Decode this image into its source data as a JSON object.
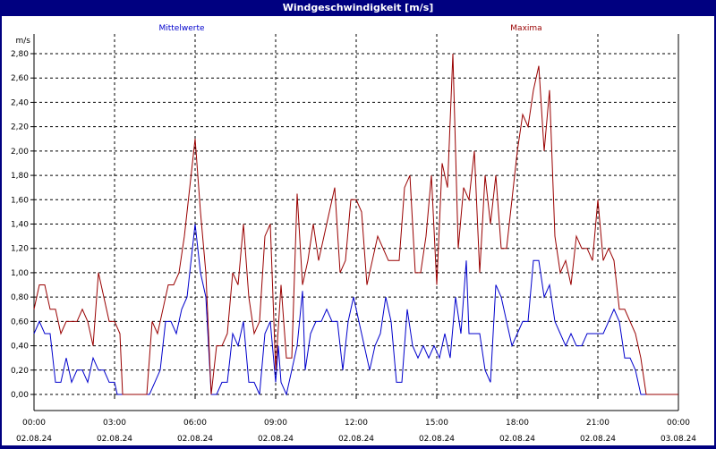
{
  "window": {
    "title": "Windgeschwindigkeit [m/s]"
  },
  "chart_data": {
    "type": "line",
    "title": "Windgeschwindigkeit [m/s]",
    "ylabel": "m/s",
    "xlabel": "",
    "ylim": [
      0,
      2.8
    ],
    "xlim": [
      0,
      24
    ],
    "grid": true,
    "legend": "top",
    "y_ticks": [
      {
        "value": 0.0,
        "label": "0,00"
      },
      {
        "value": 0.2,
        "label": "0,20"
      },
      {
        "value": 0.4,
        "label": "0,40"
      },
      {
        "value": 0.6,
        "label": "0,60"
      },
      {
        "value": 0.8,
        "label": "0,80"
      },
      {
        "value": 1.0,
        "label": "1,00"
      },
      {
        "value": 1.2,
        "label": "1,20"
      },
      {
        "value": 1.4,
        "label": "1,40"
      },
      {
        "value": 1.6,
        "label": "1,60"
      },
      {
        "value": 1.8,
        "label": "1,80"
      },
      {
        "value": 2.0,
        "label": "2,00"
      },
      {
        "value": 2.2,
        "label": "2,20"
      },
      {
        "value": 2.4,
        "label": "2,40"
      },
      {
        "value": 2.6,
        "label": "2,60"
      },
      {
        "value": 2.8,
        "label": "2,80"
      }
    ],
    "x_ticks": [
      {
        "value": 0,
        "time": "00:00",
        "date": "02.08.24"
      },
      {
        "value": 3,
        "time": "03:00",
        "date": "02.08.24"
      },
      {
        "value": 6,
        "time": "06:00",
        "date": "02.08.24"
      },
      {
        "value": 9,
        "time": "09:00",
        "date": "02.08.24"
      },
      {
        "value": 12,
        "time": "12:00",
        "date": "02.08.24"
      },
      {
        "value": 15,
        "time": "15:00",
        "date": "02.08.24"
      },
      {
        "value": 18,
        "time": "18:00",
        "date": "02.08.24"
      },
      {
        "value": 21,
        "time": "21:00",
        "date": "02.08.24"
      },
      {
        "value": 24,
        "time": "00:00",
        "date": "03.08.24"
      }
    ],
    "series": [
      {
        "name": "Mittelwerte",
        "color": "#0000cc",
        "points": [
          [
            0.0,
            0.5
          ],
          [
            0.2,
            0.6
          ],
          [
            0.4,
            0.5
          ],
          [
            0.6,
            0.5
          ],
          [
            0.8,
            0.1
          ],
          [
            1.0,
            0.1
          ],
          [
            1.2,
            0.3
          ],
          [
            1.4,
            0.1
          ],
          [
            1.6,
            0.2
          ],
          [
            1.8,
            0.2
          ],
          [
            2.0,
            0.1
          ],
          [
            2.2,
            0.3
          ],
          [
            2.4,
            0.2
          ],
          [
            2.6,
            0.2
          ],
          [
            2.8,
            0.1
          ],
          [
            3.0,
            0.1
          ],
          [
            3.1,
            0.0
          ],
          [
            4.3,
            0.0
          ],
          [
            4.5,
            0.1
          ],
          [
            4.7,
            0.2
          ],
          [
            4.9,
            0.6
          ],
          [
            5.1,
            0.6
          ],
          [
            5.3,
            0.5
          ],
          [
            5.5,
            0.7
          ],
          [
            5.7,
            0.8
          ],
          [
            5.9,
            1.2
          ],
          [
            6.0,
            1.4
          ],
          [
            6.2,
            1.0
          ],
          [
            6.4,
            0.8
          ],
          [
            6.6,
            0.0
          ],
          [
            6.8,
            0.0
          ],
          [
            7.0,
            0.1
          ],
          [
            7.2,
            0.1
          ],
          [
            7.4,
            0.5
          ],
          [
            7.6,
            0.4
          ],
          [
            7.8,
            0.6
          ],
          [
            8.0,
            0.1
          ],
          [
            8.2,
            0.1
          ],
          [
            8.4,
            0.0
          ],
          [
            8.6,
            0.5
          ],
          [
            8.8,
            0.6
          ],
          [
            9.0,
            0.1
          ],
          [
            9.1,
            0.4
          ],
          [
            9.2,
            0.1
          ],
          [
            9.4,
            0.0
          ],
          [
            9.6,
            0.2
          ],
          [
            9.8,
            0.4
          ],
          [
            10.0,
            0.85
          ],
          [
            10.1,
            0.2
          ],
          [
            10.3,
            0.5
          ],
          [
            10.5,
            0.6
          ],
          [
            10.7,
            0.6
          ],
          [
            10.9,
            0.7
          ],
          [
            11.1,
            0.6
          ],
          [
            11.3,
            0.6
          ],
          [
            11.5,
            0.2
          ],
          [
            11.7,
            0.6
          ],
          [
            11.9,
            0.8
          ],
          [
            12.1,
            0.6
          ],
          [
            12.3,
            0.4
          ],
          [
            12.5,
            0.2
          ],
          [
            12.7,
            0.4
          ],
          [
            12.9,
            0.5
          ],
          [
            13.1,
            0.8
          ],
          [
            13.3,
            0.6
          ],
          [
            13.5,
            0.1
          ],
          [
            13.7,
            0.1
          ],
          [
            13.9,
            0.7
          ],
          [
            14.1,
            0.4
          ],
          [
            14.3,
            0.3
          ],
          [
            14.5,
            0.4
          ],
          [
            14.7,
            0.3
          ],
          [
            14.9,
            0.4
          ],
          [
            15.1,
            0.3
          ],
          [
            15.3,
            0.5
          ],
          [
            15.5,
            0.3
          ],
          [
            15.7,
            0.8
          ],
          [
            15.9,
            0.5
          ],
          [
            16.1,
            1.1
          ],
          [
            16.2,
            0.5
          ],
          [
            16.4,
            0.5
          ],
          [
            16.6,
            0.5
          ],
          [
            16.8,
            0.2
          ],
          [
            17.0,
            0.1
          ],
          [
            17.2,
            0.9
          ],
          [
            17.4,
            0.8
          ],
          [
            17.6,
            0.6
          ],
          [
            17.8,
            0.4
          ],
          [
            18.0,
            0.5
          ],
          [
            18.2,
            0.6
          ],
          [
            18.4,
            0.6
          ],
          [
            18.6,
            1.1
          ],
          [
            18.8,
            1.1
          ],
          [
            19.0,
            0.8
          ],
          [
            19.2,
            0.9
          ],
          [
            19.4,
            0.6
          ],
          [
            19.6,
            0.5
          ],
          [
            19.8,
            0.4
          ],
          [
            20.0,
            0.5
          ],
          [
            20.2,
            0.4
          ],
          [
            20.4,
            0.4
          ],
          [
            20.6,
            0.5
          ],
          [
            20.8,
            0.5
          ],
          [
            21.0,
            0.5
          ],
          [
            21.2,
            0.5
          ],
          [
            21.4,
            0.6
          ],
          [
            21.6,
            0.7
          ],
          [
            21.8,
            0.6
          ],
          [
            22.0,
            0.3
          ],
          [
            22.2,
            0.3
          ],
          [
            22.4,
            0.2
          ],
          [
            22.6,
            0.0
          ],
          [
            23.8,
            0.0
          ],
          [
            24.0,
            0.0
          ]
        ]
      },
      {
        "name": "Maxima",
        "color": "#990000",
        "points": [
          [
            0.0,
            0.7
          ],
          [
            0.2,
            0.9
          ],
          [
            0.4,
            0.9
          ],
          [
            0.6,
            0.7
          ],
          [
            0.8,
            0.7
          ],
          [
            1.0,
            0.5
          ],
          [
            1.2,
            0.6
          ],
          [
            1.4,
            0.6
          ],
          [
            1.6,
            0.6
          ],
          [
            1.8,
            0.7
          ],
          [
            2.0,
            0.6
          ],
          [
            2.2,
            0.4
          ],
          [
            2.4,
            1.0
          ],
          [
            2.6,
            0.8
          ],
          [
            2.8,
            0.6
          ],
          [
            3.0,
            0.6
          ],
          [
            3.2,
            0.5
          ],
          [
            3.3,
            0.0
          ],
          [
            4.2,
            0.0
          ],
          [
            4.4,
            0.6
          ],
          [
            4.6,
            0.5
          ],
          [
            4.8,
            0.7
          ],
          [
            5.0,
            0.9
          ],
          [
            5.2,
            0.9
          ],
          [
            5.4,
            1.0
          ],
          [
            5.6,
            1.3
          ],
          [
            5.8,
            1.7
          ],
          [
            6.0,
            2.1
          ],
          [
            6.2,
            1.5
          ],
          [
            6.4,
            1.0
          ],
          [
            6.6,
            0.0
          ],
          [
            6.8,
            0.4
          ],
          [
            7.0,
            0.4
          ],
          [
            7.2,
            0.5
          ],
          [
            7.4,
            1.0
          ],
          [
            7.6,
            0.9
          ],
          [
            7.8,
            1.4
          ],
          [
            8.0,
            0.8
          ],
          [
            8.2,
            0.5
          ],
          [
            8.4,
            0.6
          ],
          [
            8.6,
            1.3
          ],
          [
            8.8,
            1.4
          ],
          [
            9.0,
            0.2
          ],
          [
            9.2,
            0.9
          ],
          [
            9.4,
            0.3
          ],
          [
            9.6,
            0.3
          ],
          [
            9.8,
            1.65
          ],
          [
            10.0,
            0.9
          ],
          [
            10.2,
            1.1
          ],
          [
            10.4,
            1.4
          ],
          [
            10.6,
            1.1
          ],
          [
            10.8,
            1.3
          ],
          [
            11.0,
            1.5
          ],
          [
            11.2,
            1.7
          ],
          [
            11.4,
            1.0
          ],
          [
            11.6,
            1.1
          ],
          [
            11.8,
            1.6
          ],
          [
            12.0,
            1.6
          ],
          [
            12.2,
            1.5
          ],
          [
            12.4,
            0.9
          ],
          [
            12.6,
            1.1
          ],
          [
            12.8,
            1.3
          ],
          [
            13.0,
            1.2
          ],
          [
            13.2,
            1.1
          ],
          [
            13.4,
            1.1
          ],
          [
            13.6,
            1.1
          ],
          [
            13.8,
            1.7
          ],
          [
            14.0,
            1.8
          ],
          [
            14.2,
            1.0
          ],
          [
            14.4,
            1.0
          ],
          [
            14.6,
            1.3
          ],
          [
            14.8,
            1.8
          ],
          [
            15.0,
            0.9
          ],
          [
            15.2,
            1.9
          ],
          [
            15.4,
            1.7
          ],
          [
            15.6,
            2.8
          ],
          [
            15.8,
            1.2
          ],
          [
            16.0,
            1.7
          ],
          [
            16.2,
            1.6
          ],
          [
            16.4,
            2.0
          ],
          [
            16.6,
            1.0
          ],
          [
            16.8,
            1.8
          ],
          [
            17.0,
            1.4
          ],
          [
            17.2,
            1.8
          ],
          [
            17.4,
            1.2
          ],
          [
            17.6,
            1.2
          ],
          [
            17.8,
            1.6
          ],
          [
            18.0,
            2.0
          ],
          [
            18.2,
            2.3
          ],
          [
            18.4,
            2.2
          ],
          [
            18.6,
            2.5
          ],
          [
            18.8,
            2.7
          ],
          [
            19.0,
            2.0
          ],
          [
            19.2,
            2.5
          ],
          [
            19.4,
            1.3
          ],
          [
            19.6,
            1.0
          ],
          [
            19.8,
            1.1
          ],
          [
            20.0,
            0.9
          ],
          [
            20.2,
            1.3
          ],
          [
            20.4,
            1.2
          ],
          [
            20.6,
            1.2
          ],
          [
            20.8,
            1.1
          ],
          [
            21.0,
            1.6
          ],
          [
            21.2,
            1.1
          ],
          [
            21.4,
            1.2
          ],
          [
            21.6,
            1.1
          ],
          [
            21.8,
            0.7
          ],
          [
            22.0,
            0.7
          ],
          [
            22.2,
            0.6
          ],
          [
            22.4,
            0.5
          ],
          [
            22.6,
            0.3
          ],
          [
            22.8,
            0.0
          ],
          [
            24.0,
            0.0
          ]
        ]
      }
    ]
  }
}
